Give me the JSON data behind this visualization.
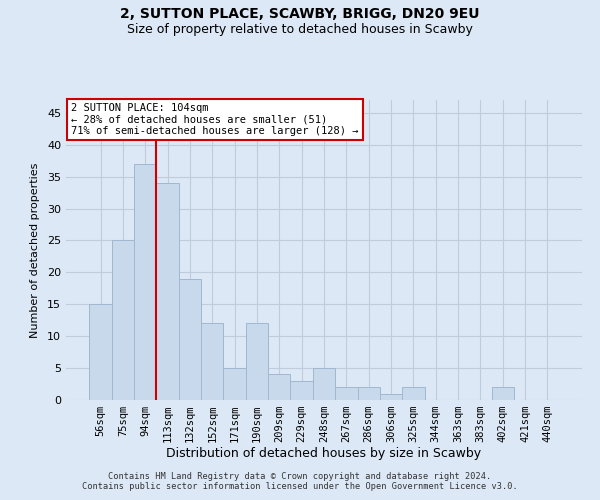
{
  "title_line1": "2, SUTTON PLACE, SCAWBY, BRIGG, DN20 9EU",
  "title_line2": "Size of property relative to detached houses in Scawby",
  "xlabel": "Distribution of detached houses by size in Scawby",
  "ylabel": "Number of detached properties",
  "footer_line1": "Contains HM Land Registry data © Crown copyright and database right 2024.",
  "footer_line2": "Contains public sector information licensed under the Open Government Licence v3.0.",
  "categories": [
    "56sqm",
    "75sqm",
    "94sqm",
    "113sqm",
    "132sqm",
    "152sqm",
    "171sqm",
    "190sqm",
    "209sqm",
    "229sqm",
    "248sqm",
    "267sqm",
    "286sqm",
    "306sqm",
    "325sqm",
    "344sqm",
    "363sqm",
    "383sqm",
    "402sqm",
    "421sqm",
    "440sqm"
  ],
  "values": [
    15,
    25,
    37,
    34,
    19,
    12,
    5,
    12,
    4,
    3,
    5,
    2,
    2,
    1,
    2,
    0,
    0,
    0,
    2,
    0,
    0
  ],
  "bar_color": "#c9d9ec",
  "bar_edge_color": "#a0b8d0",
  "grid_color": "#c0ccdc",
  "bg_color": "#dce8f5",
  "annotation_text": "2 SUTTON PLACE: 104sqm\n← 28% of detached houses are smaller (51)\n71% of semi-detached houses are larger (128) →",
  "annotation_box_color": "#ffffff",
  "annotation_border_color": "#cc0000",
  "property_line_color": "#cc0000",
  "property_line_x": 2.5,
  "ylim": [
    0,
    47
  ],
  "yticks": [
    0,
    5,
    10,
    15,
    20,
    25,
    30,
    35,
    40,
    45
  ]
}
